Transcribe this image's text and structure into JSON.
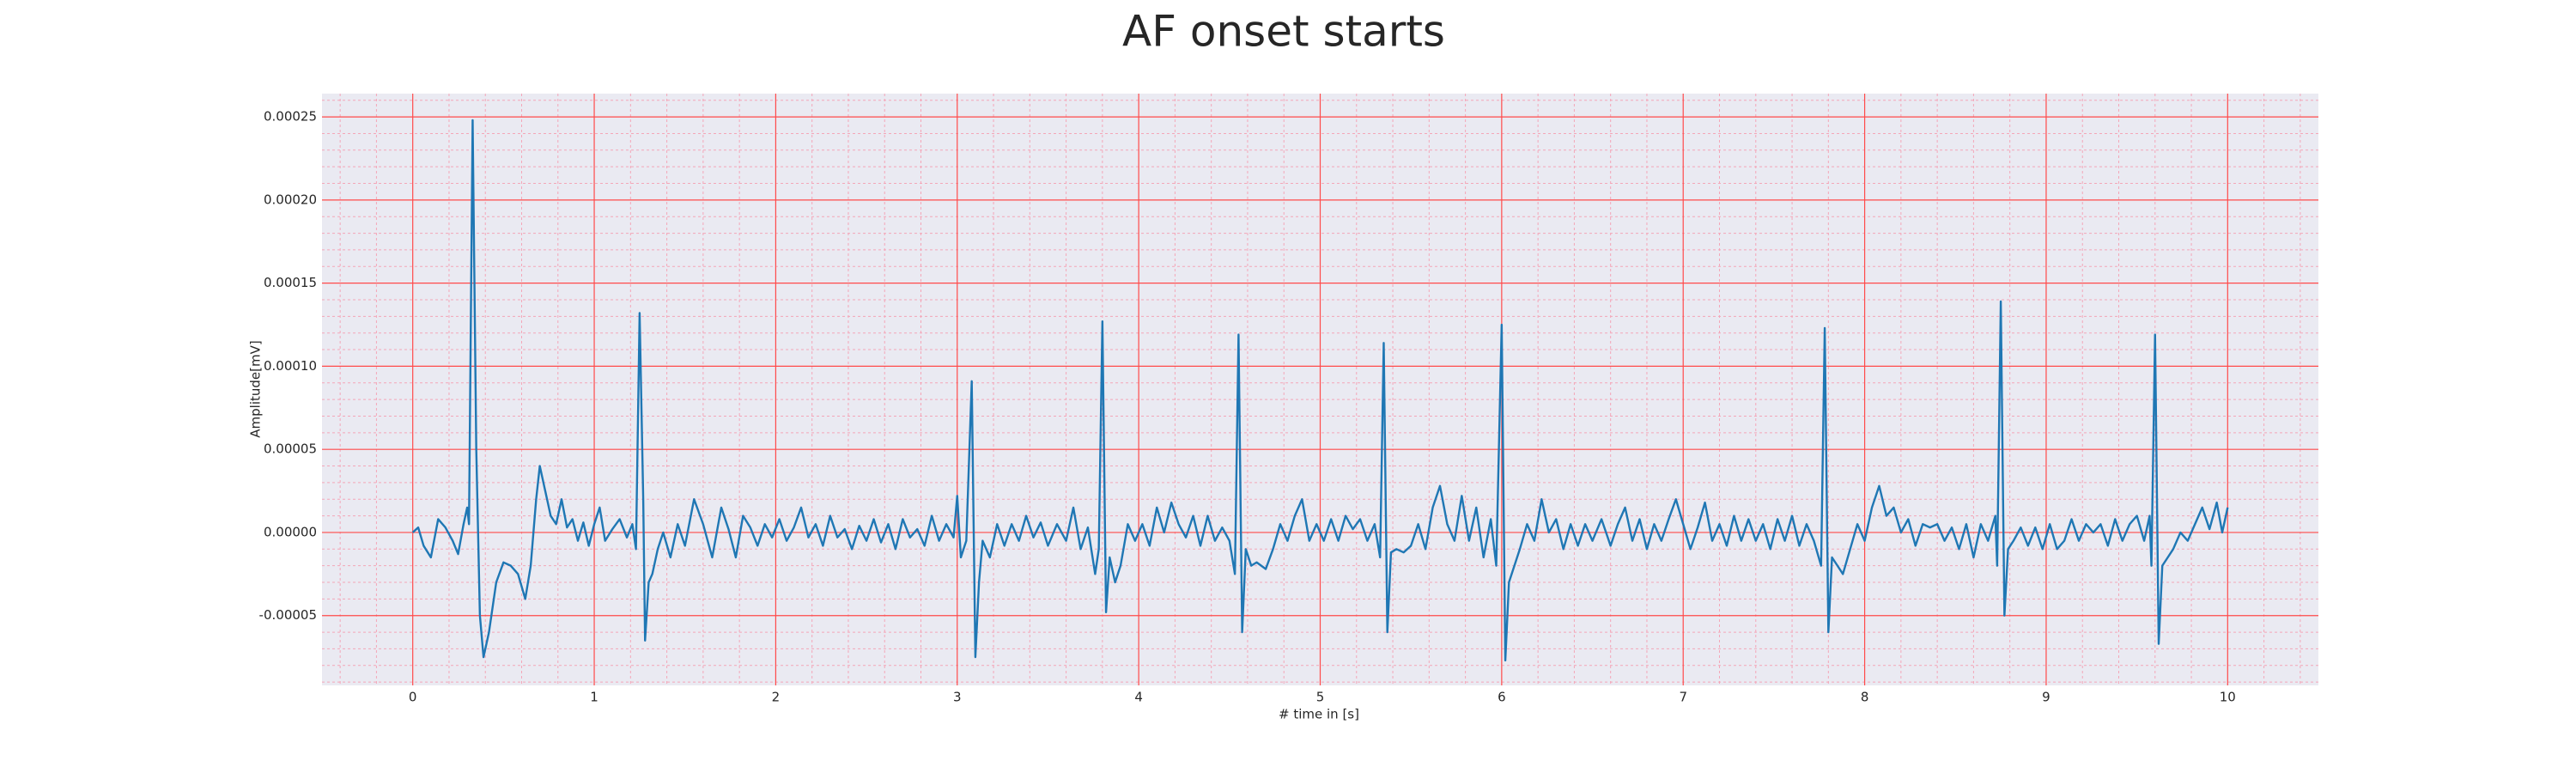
{
  "chart_data": {
    "type": "line",
    "title": "AF onset starts",
    "xlabel": "# time in [s]",
    "ylabel": "Amplitude[mV]",
    "color": "#1f77b4",
    "grid": true,
    "xlim": [
      -0.5,
      10.5
    ],
    "ylim": [
      -9.2e-05,
      0.000264
    ],
    "xticks": [
      0,
      1,
      2,
      3,
      4,
      5,
      6,
      7,
      8,
      9,
      10
    ],
    "yticks": [
      -5e-05,
      {
        "value": 0,
        "label": "0.00000"
      },
      5e-05,
      {
        "value": 0.0001,
        "label": "0.00010"
      },
      0.00015,
      {
        "value": 0.0002,
        "label": "0.00020"
      },
      0.00025
    ],
    "xminorticks": [
      -0.4,
      -0.2,
      0.2,
      0.4,
      0.6,
      0.8,
      1.2,
      1.4,
      1.6,
      1.8,
      2.2,
      2.4,
      2.6,
      2.8,
      3.2,
      3.4,
      3.6,
      3.8,
      4.2,
      4.4,
      4.6,
      4.8,
      5.2,
      5.4,
      5.6,
      5.8,
      6.2,
      6.4,
      6.6,
      6.8,
      7.2,
      7.4,
      7.6,
      7.8,
      8.2,
      8.4,
      8.6,
      8.8,
      9.2,
      9.4,
      9.6,
      9.8,
      10.2,
      10.4
    ],
    "yminorticks": [
      -9e-05,
      -8e-05,
      -7e-05,
      -6e-05,
      -4e-05,
      -3e-05,
      -2e-05,
      -1e-05,
      1e-05,
      2e-05,
      3e-05,
      4e-05,
      6e-05,
      7e-05,
      8e-05,
      9e-05,
      0.00011,
      0.00012,
      0.00013,
      0.00014,
      0.00016,
      0.00017,
      0.00018,
      0.00019,
      0.00021,
      0.00022,
      0.00023,
      0.00024,
      0.00026
    ],
    "x": [
      0,
      0.03,
      0.06,
      0.1,
      0.14,
      0.18,
      0.22,
      0.25,
      0.28,
      0.3,
      0.31,
      0.33,
      0.35,
      0.37,
      0.39,
      0.42,
      0.46,
      0.5,
      0.54,
      0.58,
      0.62,
      0.65,
      0.68,
      0.7,
      0.73,
      0.76,
      0.79,
      0.82,
      0.85,
      0.88,
      0.91,
      0.94,
      0.97,
      1.0,
      1.03,
      1.06,
      1.1,
      1.14,
      1.18,
      1.21,
      1.23,
      1.25,
      1.27,
      1.28,
      1.3,
      1.32,
      1.35,
      1.38,
      1.42,
      1.46,
      1.5,
      1.55,
      1.6,
      1.65,
      1.7,
      1.74,
      1.78,
      1.82,
      1.86,
      1.9,
      1.94,
      1.98,
      2.02,
      2.06,
      2.1,
      2.14,
      2.18,
      2.22,
      2.26,
      2.3,
      2.34,
      2.38,
      2.42,
      2.46,
      2.5,
      2.54,
      2.58,
      2.62,
      2.66,
      2.7,
      2.74,
      2.78,
      2.82,
      2.86,
      2.9,
      2.94,
      2.98,
      3.0,
      3.02,
      3.05,
      3.08,
      3.1,
      3.12,
      3.14,
      3.18,
      3.22,
      3.26,
      3.3,
      3.34,
      3.38,
      3.42,
      3.46,
      3.5,
      3.55,
      3.6,
      3.64,
      3.68,
      3.72,
      3.76,
      3.78,
      3.8,
      3.82,
      3.84,
      3.87,
      3.9,
      3.94,
      3.98,
      4.02,
      4.06,
      4.1,
      4.14,
      4.18,
      4.22,
      4.26,
      4.3,
      4.34,
      4.38,
      4.42,
      4.46,
      4.5,
      4.53,
      4.55,
      4.57,
      4.59,
      4.62,
      4.65,
      4.7,
      4.74,
      4.78,
      4.82,
      4.86,
      4.9,
      4.94,
      4.98,
      5.02,
      5.06,
      5.1,
      5.14,
      5.18,
      5.22,
      5.26,
      5.3,
      5.33,
      5.35,
      5.37,
      5.39,
      5.42,
      5.46,
      5.5,
      5.54,
      5.58,
      5.62,
      5.66,
      5.7,
      5.74,
      5.78,
      5.82,
      5.86,
      5.9,
      5.94,
      5.97,
      6.0,
      6.02,
      6.04,
      6.07,
      6.1,
      6.14,
      6.18,
      6.22,
      6.26,
      6.3,
      6.34,
      6.38,
      6.42,
      6.46,
      6.5,
      6.55,
      6.6,
      6.64,
      6.68,
      6.72,
      6.76,
      6.8,
      6.84,
      6.88,
      6.92,
      6.96,
      7.0,
      7.04,
      7.08,
      7.12,
      7.16,
      7.2,
      7.24,
      7.28,
      7.32,
      7.36,
      7.4,
      7.44,
      7.48,
      7.52,
      7.56,
      7.6,
      7.64,
      7.68,
      7.72,
      7.76,
      7.78,
      7.8,
      7.82,
      7.85,
      7.88,
      7.92,
      7.96,
      8.0,
      8.04,
      8.08,
      8.12,
      8.16,
      8.2,
      8.24,
      8.28,
      8.32,
      8.36,
      8.4,
      8.44,
      8.48,
      8.52,
      8.56,
      8.6,
      8.64,
      8.68,
      8.72,
      8.73,
      8.75,
      8.77,
      8.79,
      8.82,
      8.86,
      8.9,
      8.94,
      8.98,
      9.02,
      9.06,
      9.1,
      9.14,
      9.18,
      9.22,
      9.26,
      9.3,
      9.34,
      9.38,
      9.42,
      9.46,
      9.5,
      9.54,
      9.57,
      9.58,
      9.6,
      9.62,
      9.64,
      9.67,
      9.7,
      9.74,
      9.78,
      9.82,
      9.86,
      9.9,
      9.94,
      9.97,
      10.0
    ],
    "values": [
      0,
      3e-06,
      -8e-06,
      -1.5e-05,
      8e-06,
      3e-06,
      -5e-06,
      -1.3e-05,
      5e-06,
      1.5e-05,
      5e-06,
      0.000248,
      5e-05,
      -5e-05,
      -7.5e-05,
      -6e-05,
      -3e-05,
      -1.8e-05,
      -2e-05,
      -2.5e-05,
      -4e-05,
      -2e-05,
      2e-05,
      4e-05,
      2.5e-05,
      1e-05,
      5e-06,
      2e-05,
      3e-06,
      8e-06,
      -5e-06,
      6e-06,
      -8e-06,
      5e-06,
      1.5e-05,
      -5e-06,
      2e-06,
      8e-06,
      -3e-06,
      5e-06,
      -1e-05,
      0.000132,
      2e-05,
      -6.5e-05,
      -3e-05,
      -2.5e-05,
      -1e-05,
      0,
      -1.5e-05,
      5e-06,
      -8e-06,
      2e-05,
      5e-06,
      -1.5e-05,
      1.5e-05,
      2e-06,
      -1.5e-05,
      1e-05,
      3e-06,
      -8e-06,
      5e-06,
      -3e-06,
      8e-06,
      -5e-06,
      3e-06,
      1.5e-05,
      -3e-06,
      5e-06,
      -8e-06,
      1e-05,
      -3e-06,
      2e-06,
      -1e-05,
      4e-06,
      -5e-06,
      8e-06,
      -6e-06,
      5e-06,
      -1e-05,
      8e-06,
      -3e-06,
      2e-06,
      -8e-06,
      1e-05,
      -5e-06,
      5e-06,
      -3e-06,
      2.2e-05,
      -1.5e-05,
      -5e-06,
      9.1e-05,
      -7.5e-05,
      -3e-05,
      -5e-06,
      -1.5e-05,
      5e-06,
      -8e-06,
      5e-06,
      -5e-06,
      1e-05,
      -3e-06,
      6e-06,
      -8e-06,
      5e-06,
      -5e-06,
      1.5e-05,
      -1e-05,
      3e-06,
      -2.5e-05,
      -1e-05,
      0.000127,
      -4.8e-05,
      -1.5e-05,
      -3e-05,
      -2e-05,
      5e-06,
      -5e-06,
      5e-06,
      -8e-06,
      1.5e-05,
      0,
      1.8e-05,
      5e-06,
      -3e-06,
      1e-05,
      -8e-06,
      1e-05,
      -5e-06,
      3e-06,
      -5e-06,
      -2.5e-05,
      0.000119,
      -6e-05,
      -1e-05,
      -2e-05,
      -1.8e-05,
      -2.2e-05,
      -1e-05,
      5e-06,
      -5e-06,
      1e-05,
      2e-05,
      -5e-06,
      5e-06,
      -5e-06,
      8e-06,
      -5e-06,
      1e-05,
      2e-06,
      8e-06,
      -5e-06,
      5e-06,
      -1.5e-05,
      0.000114,
      -6e-05,
      -1.2e-05,
      -1e-05,
      -1.2e-05,
      -8e-06,
      5e-06,
      -1e-05,
      1.5e-05,
      2.8e-05,
      5e-06,
      -5e-06,
      2.2e-05,
      -5e-06,
      1.5e-05,
      -1.5e-05,
      8e-06,
      -2e-05,
      0.000125,
      -7.7e-05,
      -3e-05,
      -2e-05,
      -1e-05,
      5e-06,
      -5e-06,
      2e-05,
      0,
      8e-06,
      -1e-05,
      5e-06,
      -8e-06,
      5e-06,
      -5e-06,
      8e-06,
      -8e-06,
      5e-06,
      1.5e-05,
      -5e-06,
      8e-06,
      -1e-05,
      5e-06,
      -5e-06,
      8e-06,
      2e-05,
      5e-06,
      -1e-05,
      3e-06,
      1.8e-05,
      -5e-06,
      5e-06,
      -8e-06,
      1e-05,
      -5e-06,
      8e-06,
      -5e-06,
      5e-06,
      -1e-05,
      8e-06,
      -5e-06,
      1e-05,
      -8e-06,
      5e-06,
      -5e-06,
      -2e-05,
      0.000123,
      -6e-05,
      -1.5e-05,
      -2e-05,
      -2.5e-05,
      -1e-05,
      5e-06,
      -5e-06,
      1.5e-05,
      2.8e-05,
      1e-05,
      1.5e-05,
      0,
      8e-06,
      -8e-06,
      5e-06,
      3e-06,
      5e-06,
      -5e-06,
      3e-06,
      -1e-05,
      5e-06,
      -1.5e-05,
      5e-06,
      -5e-06,
      1e-05,
      -2e-05,
      0.000139,
      -5e-05,
      -1e-05,
      -5e-06,
      3e-06,
      -8e-06,
      3e-06,
      -1e-05,
      5e-06,
      -1e-05,
      -5e-06,
      8e-06,
      -5e-06,
      5e-06,
      0,
      5e-06,
      -8e-06,
      8e-06,
      -5e-06,
      5e-06,
      1e-05,
      -5e-06,
      1e-05,
      -2e-05,
      0.000119,
      -6.7e-05,
      -2e-05,
      -1.5e-05,
      -1e-05,
      0,
      -5e-06,
      5e-06,
      1.5e-05,
      2e-06,
      1.8e-05,
      0,
      1.5e-05
    ]
  }
}
